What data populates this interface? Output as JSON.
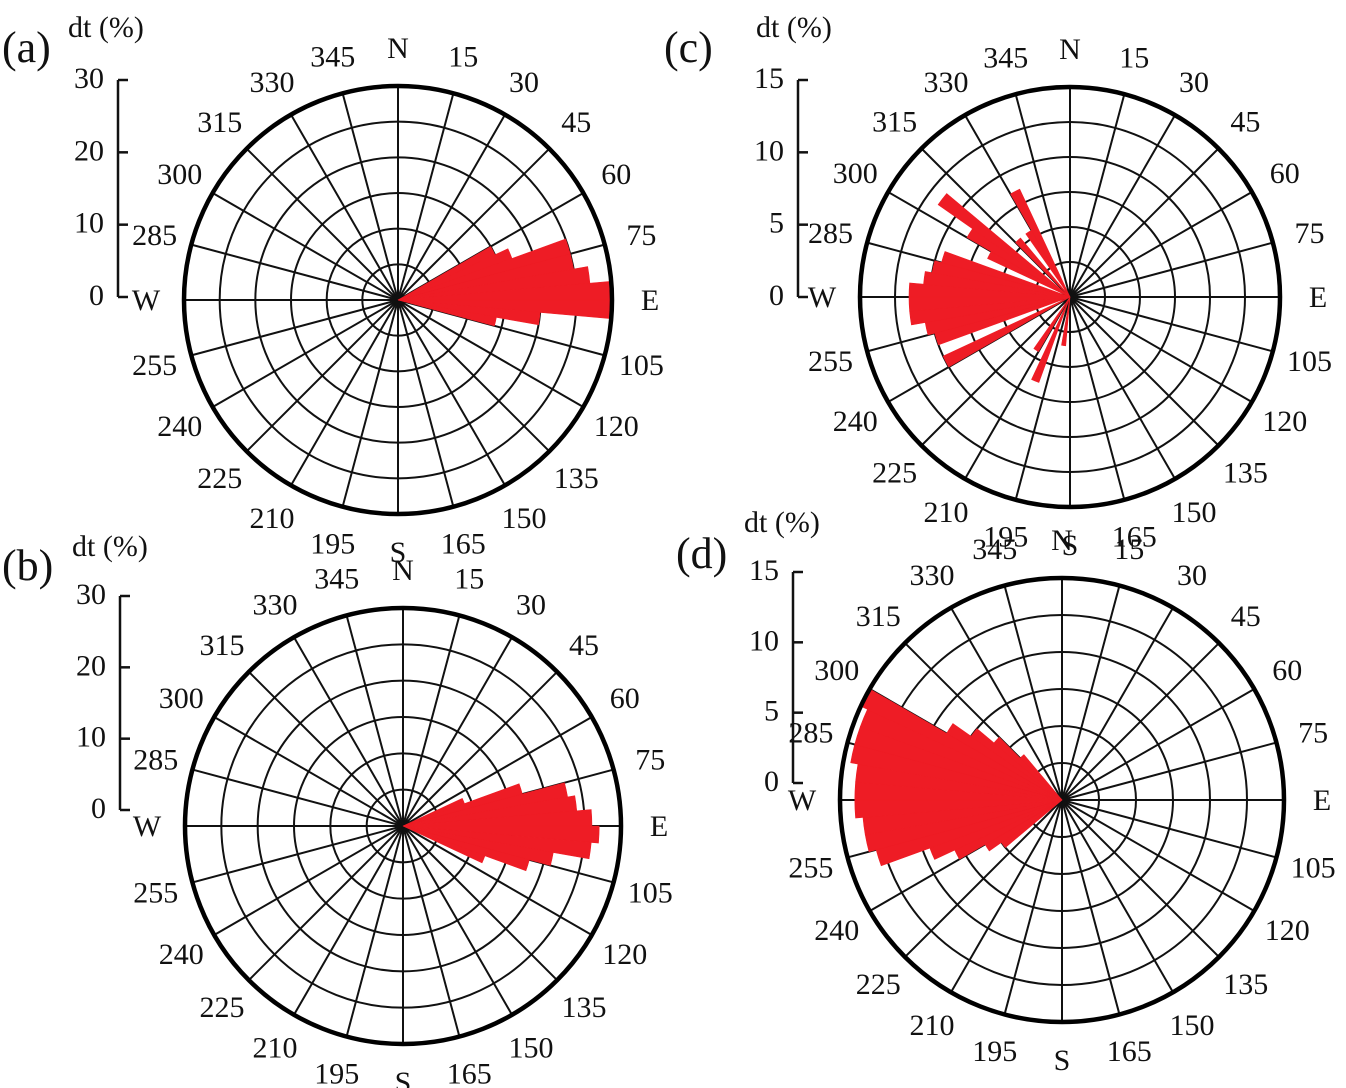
{
  "chart_data": [
    {
      "type": "rose",
      "panel_label": "(a)",
      "radial_label": "dt (%)",
      "radial_range": [
        0,
        30
      ],
      "radial_ticks": [
        "0",
        "10",
        "20",
        "30"
      ],
      "direction_labels": [
        "N",
        "15",
        "30",
        "45",
        "60",
        "75",
        "E",
        "105",
        "120",
        "135",
        "150",
        "165",
        "S",
        "195",
        "210",
        "225",
        "240",
        "255",
        "W",
        "285",
        "300",
        "315",
        "330",
        "345"
      ],
      "sector_width_deg": 5,
      "sectors": [
        {
          "angle": 62.5,
          "value": 15
        },
        {
          "angle": 67.5,
          "value": 17
        },
        {
          "angle": 72.5,
          "value": 25
        },
        {
          "angle": 77.5,
          "value": 25
        },
        {
          "angle": 82.5,
          "value": 27
        },
        {
          "angle": 87.5,
          "value": 30
        },
        {
          "angle": 92.5,
          "value": 30
        },
        {
          "angle": 97.5,
          "value": 20
        },
        {
          "angle": 102.5,
          "value": 14
        }
      ]
    },
    {
      "type": "rose",
      "panel_label": "(b)",
      "radial_label": "dt (%)",
      "radial_range": [
        0,
        30
      ],
      "radial_ticks": [
        "0",
        "10",
        "20",
        "30"
      ],
      "direction_labels": [
        "N",
        "15",
        "30",
        "45",
        "60",
        "75",
        "E",
        "105",
        "120",
        "135",
        "150",
        "165",
        "S",
        "195",
        "210",
        "225",
        "240",
        "255",
        "W",
        "285",
        "300",
        "315",
        "330",
        "345"
      ],
      "sector_width_deg": 5,
      "sectors": [
        {
          "angle": 67.5,
          "value": 9
        },
        {
          "angle": 72.5,
          "value": 17
        },
        {
          "angle": 77.5,
          "value": 23
        },
        {
          "angle": 82.5,
          "value": 24
        },
        {
          "angle": 87.5,
          "value": 26
        },
        {
          "angle": 92.5,
          "value": 27
        },
        {
          "angle": 97.5,
          "value": 26
        },
        {
          "angle": 102.5,
          "value": 21
        },
        {
          "angle": 107.5,
          "value": 18
        },
        {
          "angle": 112.5,
          "value": 12
        }
      ]
    },
    {
      "type": "rose",
      "panel_label": "(c)",
      "radial_label": "dt (%)",
      "radial_range": [
        0,
        15
      ],
      "radial_ticks": [
        "0",
        "5",
        "10",
        "15"
      ],
      "direction_labels": [
        "N",
        "15",
        "30",
        "45",
        "60",
        "75",
        "E",
        "105",
        "120",
        "135",
        "150",
        "165",
        "S",
        "195",
        "210",
        "225",
        "240",
        "255",
        "W",
        "285",
        "300",
        "315",
        "330",
        "345"
      ],
      "sector_width_deg": 5,
      "sectors": [
        {
          "angle": 187.5,
          "value": 3.5
        },
        {
          "angle": 202.5,
          "value": 6.5
        },
        {
          "angle": 212.5,
          "value": 4.5
        },
        {
          "angle": 242.5,
          "value": 10
        },
        {
          "angle": 252.5,
          "value": 10
        },
        {
          "angle": 257.5,
          "value": 10.5
        },
        {
          "angle": 262.5,
          "value": 11.5
        },
        {
          "angle": 267.5,
          "value": 11.5
        },
        {
          "angle": 272.5,
          "value": 11.5
        },
        {
          "angle": 277.5,
          "value": 10.5
        },
        {
          "angle": 282.5,
          "value": 10
        },
        {
          "angle": 287.5,
          "value": 9.5
        },
        {
          "angle": 297.5,
          "value": 6.5
        },
        {
          "angle": 302.5,
          "value": 8.5
        },
        {
          "angle": 307.5,
          "value": 11.5
        },
        {
          "angle": 317.5,
          "value": 5.5
        },
        {
          "angle": 327.5,
          "value": 5.5
        },
        {
          "angle": 332.5,
          "value": 8.5
        }
      ]
    },
    {
      "type": "rose",
      "panel_label": "(d)",
      "radial_label": "dt (%)",
      "radial_range": [
        0,
        15
      ],
      "radial_ticks": [
        "0",
        "5",
        "10",
        "15"
      ],
      "direction_labels": [
        "N",
        "15",
        "30",
        "45",
        "60",
        "75",
        "E",
        "105",
        "120",
        "135",
        "150",
        "165",
        "S",
        "195",
        "210",
        "225",
        "240",
        "255",
        "W",
        "285",
        "300",
        "315",
        "330",
        "345"
      ],
      "sector_width_deg": 5,
      "sectors": [
        {
          "angle": 232.5,
          "value": 5
        },
        {
          "angle": 237.5,
          "value": 6
        },
        {
          "angle": 242.5,
          "value": 8
        },
        {
          "angle": 247.5,
          "value": 9.5
        },
        {
          "angle": 252.5,
          "value": 13
        },
        {
          "angle": 257.5,
          "value": 13.5
        },
        {
          "angle": 262.5,
          "value": 13.5
        },
        {
          "angle": 267.5,
          "value": 14
        },
        {
          "angle": 272.5,
          "value": 14
        },
        {
          "angle": 277.5,
          "value": 14
        },
        {
          "angle": 282.5,
          "value": 14.5
        },
        {
          "angle": 287.5,
          "value": 14.5
        },
        {
          "angle": 292.5,
          "value": 14.5
        },
        {
          "angle": 297.5,
          "value": 15
        },
        {
          "angle": 302.5,
          "value": 9
        },
        {
          "angle": 307.5,
          "value": 7.5
        },
        {
          "angle": 312.5,
          "value": 6
        },
        {
          "angle": 317.5,
          "value": 4
        }
      ]
    }
  ]
}
